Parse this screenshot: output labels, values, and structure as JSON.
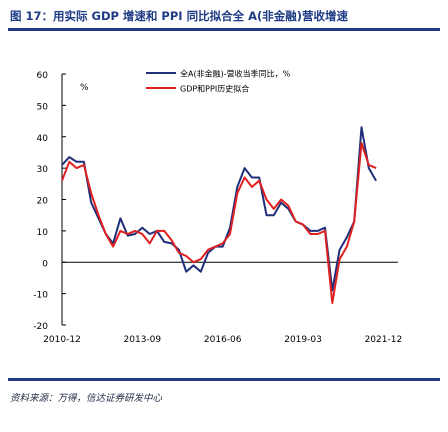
{
  "title": "图 17：用实际 GDP 增速和 PPI 同比拟合全 A(非金融)营收增速",
  "source": "资料来源：万得，信达证券研发中心",
  "colors": {
    "series1": "#1f2f7a",
    "series2": "#e02020",
    "axis": "#000000",
    "heading": "#1f3b86"
  },
  "chart_data": {
    "type": "line",
    "ylim": [
      -20,
      60
    ],
    "yticks": [
      -20,
      -10,
      0,
      10,
      20,
      30,
      40,
      50,
      60
    ],
    "ylabel": "%",
    "xlim": [
      "2010-12",
      "2022-06"
    ],
    "xticks": [
      "2010-12",
      "2013-09",
      "2016-06",
      "2019-03",
      "2021-12"
    ],
    "legend_position": "top-right",
    "series": [
      {
        "name": "全A(非金融)-营收当季同比，%",
        "color": "#1f2f7a",
        "points": [
          [
            "2010-12",
            31
          ],
          [
            "2011-03",
            33.5
          ],
          [
            "2011-06",
            32
          ],
          [
            "2011-09",
            32
          ],
          [
            "2011-12",
            19
          ],
          [
            "2012-03",
            14
          ],
          [
            "2012-06",
            9
          ],
          [
            "2012-09",
            6
          ],
          [
            "2012-12",
            14
          ],
          [
            "2013-03",
            8.5
          ],
          [
            "2013-06",
            9
          ],
          [
            "2013-09",
            11
          ],
          [
            "2013-12",
            9
          ],
          [
            "2014-03",
            10
          ],
          [
            "2014-06",
            6.5
          ],
          [
            "2014-09",
            6
          ],
          [
            "2014-12",
            4
          ],
          [
            "2015-03",
            -3
          ],
          [
            "2015-06",
            -1
          ],
          [
            "2015-09",
            -3
          ],
          [
            "2015-12",
            3
          ],
          [
            "2016-03",
            5
          ],
          [
            "2016-06",
            5
          ],
          [
            "2016-09",
            11
          ],
          [
            "2016-12",
            24
          ],
          [
            "2017-03",
            30
          ],
          [
            "2017-06",
            27
          ],
          [
            "2017-09",
            27
          ],
          [
            "2017-12",
            15
          ],
          [
            "2018-03",
            15
          ],
          [
            "2018-06",
            19
          ],
          [
            "2018-09",
            17
          ],
          [
            "2018-12",
            13
          ],
          [
            "2019-03",
            12
          ],
          [
            "2019-06",
            10
          ],
          [
            "2019-09",
            10
          ],
          [
            "2019-12",
            11
          ],
          [
            "2020-03",
            -9
          ],
          [
            "2020-06",
            4
          ],
          [
            "2020-09",
            8
          ],
          [
            "2020-12",
            13
          ],
          [
            "2021-03",
            43
          ],
          [
            "2021-06",
            30
          ],
          [
            "2021-09",
            26
          ]
        ]
      },
      {
        "name": "GDP和PPI历史拟合",
        "color": "#e02020",
        "points": [
          [
            "2010-12",
            26
          ],
          [
            "2011-03",
            32
          ],
          [
            "2011-06",
            30
          ],
          [
            "2011-09",
            31
          ],
          [
            "2011-12",
            22
          ],
          [
            "2012-03",
            15
          ],
          [
            "2012-06",
            9
          ],
          [
            "2012-09",
            5
          ],
          [
            "2012-12",
            10
          ],
          [
            "2013-03",
            9
          ],
          [
            "2013-06",
            10
          ],
          [
            "2013-09",
            9
          ],
          [
            "2013-12",
            6
          ],
          [
            "2014-03",
            10
          ],
          [
            "2014-06",
            10
          ],
          [
            "2014-09",
            7
          ],
          [
            "2014-12",
            3
          ],
          [
            "2015-03",
            2
          ],
          [
            "2015-06",
            0
          ],
          [
            "2015-09",
            1
          ],
          [
            "2015-12",
            4
          ],
          [
            "2016-03",
            5
          ],
          [
            "2016-06",
            6
          ],
          [
            "2016-09",
            9
          ],
          [
            "2016-12",
            22
          ],
          [
            "2017-03",
            27
          ],
          [
            "2017-06",
            24
          ],
          [
            "2017-09",
            26
          ],
          [
            "2017-12",
            20
          ],
          [
            "2018-03",
            17
          ],
          [
            "2018-06",
            20
          ],
          [
            "2018-09",
            18
          ],
          [
            "2018-12",
            13
          ],
          [
            "2019-03",
            12
          ],
          [
            "2019-06",
            9
          ],
          [
            "2019-09",
            9
          ],
          [
            "2019-12",
            10
          ],
          [
            "2020-03",
            -13
          ],
          [
            "2020-06",
            1
          ],
          [
            "2020-09",
            5
          ],
          [
            "2020-12",
            13
          ],
          [
            "2021-03",
            38
          ],
          [
            "2021-06",
            31
          ],
          [
            "2021-09",
            30
          ]
        ]
      }
    ]
  }
}
